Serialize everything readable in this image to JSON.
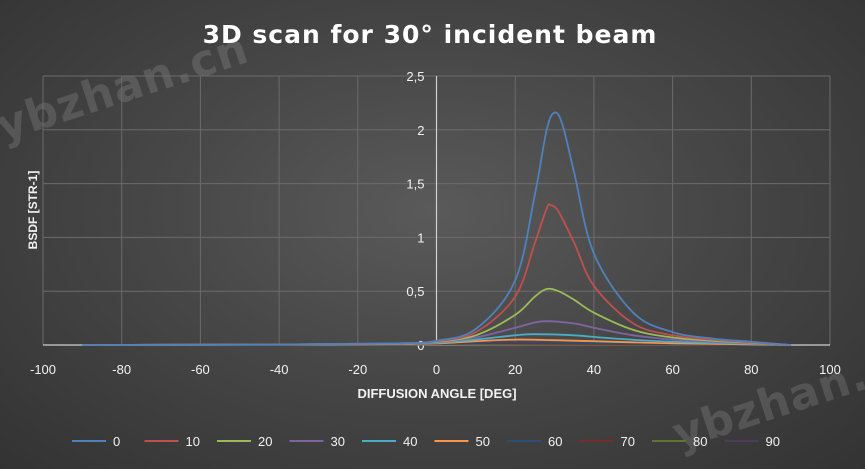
{
  "watermark": "ybzhan.cn",
  "chart_data": {
    "type": "line",
    "title": "3D scan for 30° incident beam",
    "xlabel": "DIFFUSION ANGLE [DEG]",
    "ylabel": "BSDF [STR-1]",
    "xlim": [
      -100,
      100
    ],
    "ylim": [
      0,
      2.5
    ],
    "x_ticks": [
      "-100",
      "-80",
      "-60",
      "-40",
      "-20",
      "0",
      "20",
      "40",
      "60",
      "80",
      "100"
    ],
    "y_ticks": [
      "0",
      "0,5",
      "1",
      "1,5",
      "2",
      "2,5"
    ],
    "grid": true,
    "legend_position": "bottom",
    "series": [
      {
        "name": "0",
        "color": "#4f81bd",
        "peak_x": 30,
        "x": [
          -90,
          -40,
          -10,
          0,
          10,
          20,
          25,
          28,
          30,
          32,
          35,
          40,
          50,
          60,
          70,
          80,
          90
        ],
        "y": [
          0.0,
          0.005,
          0.015,
          0.04,
          0.15,
          0.6,
          1.4,
          2.0,
          2.16,
          2.05,
          1.6,
          0.85,
          0.3,
          0.12,
          0.06,
          0.03,
          0.0
        ]
      },
      {
        "name": "10",
        "color": "#c0504d",
        "peak_x": 29,
        "x": [
          -90,
          -40,
          -10,
          0,
          10,
          20,
          25,
          28,
          29,
          31,
          35,
          40,
          50,
          60,
          70,
          80,
          90
        ],
        "y": [
          0.0,
          0.005,
          0.015,
          0.035,
          0.12,
          0.45,
          0.95,
          1.27,
          1.3,
          1.24,
          0.95,
          0.55,
          0.2,
          0.09,
          0.05,
          0.025,
          0.0
        ]
      },
      {
        "name": "20",
        "color": "#9bbb59",
        "peak_x": 28,
        "x": [
          -90,
          -40,
          -10,
          0,
          10,
          20,
          25,
          28,
          31,
          35,
          40,
          50,
          60,
          70,
          80,
          90
        ],
        "y": [
          0.0,
          0.005,
          0.012,
          0.03,
          0.09,
          0.28,
          0.45,
          0.52,
          0.5,
          0.42,
          0.3,
          0.14,
          0.07,
          0.04,
          0.02,
          0.0
        ]
      },
      {
        "name": "30",
        "color": "#8064a2",
        "peak_x": 27,
        "x": [
          -90,
          -40,
          -10,
          0,
          10,
          20,
          27,
          35,
          40,
          50,
          60,
          70,
          80,
          90
        ],
        "y": [
          0.0,
          0.004,
          0.01,
          0.025,
          0.07,
          0.16,
          0.22,
          0.2,
          0.16,
          0.09,
          0.05,
          0.03,
          0.015,
          0.0
        ]
      },
      {
        "name": "40",
        "color": "#4bacc6",
        "peak_x": 25,
        "x": [
          -90,
          -40,
          -10,
          0,
          10,
          20,
          25,
          35,
          45,
          60,
          75,
          90
        ],
        "y": [
          0.0,
          0.004,
          0.01,
          0.02,
          0.05,
          0.09,
          0.1,
          0.09,
          0.06,
          0.03,
          0.015,
          0.0
        ]
      },
      {
        "name": "50",
        "color": "#f79646",
        "peak_x": 20,
        "x": [
          -90,
          -40,
          -10,
          0,
          10,
          20,
          30,
          45,
          60,
          75,
          90
        ],
        "y": [
          0.0,
          0.004,
          0.008,
          0.015,
          0.035,
          0.05,
          0.045,
          0.03,
          0.015,
          0.008,
          0.0
        ]
      },
      {
        "name": "60",
        "color": "#2c4d75",
        "peak_x": 15,
        "x": [
          -90,
          -40,
          -10,
          0,
          15,
          30,
          45,
          60,
          75,
          90
        ],
        "y": [
          0.0,
          0.003,
          0.007,
          0.012,
          0.025,
          0.022,
          0.015,
          0.01,
          0.005,
          0.0
        ]
      },
      {
        "name": "70",
        "color": "#772c2a",
        "peak_x": 10,
        "x": [
          -90,
          -40,
          -10,
          0,
          10,
          30,
          50,
          70,
          90
        ],
        "y": [
          0.0,
          0.003,
          0.006,
          0.01,
          0.015,
          0.012,
          0.008,
          0.004,
          0.0
        ]
      },
      {
        "name": "80",
        "color": "#5f7530",
        "peak_x": 5,
        "x": [
          -90,
          -40,
          -10,
          5,
          30,
          60,
          90
        ],
        "y": [
          0.0,
          0.003,
          0.005,
          0.009,
          0.007,
          0.004,
          0.0
        ]
      },
      {
        "name": "90",
        "color": "#4d3b62",
        "peak_x": 0,
        "x": [
          -90,
          -40,
          0,
          40,
          90
        ],
        "y": [
          0.0,
          0.004,
          0.006,
          0.004,
          0.0
        ]
      }
    ]
  }
}
